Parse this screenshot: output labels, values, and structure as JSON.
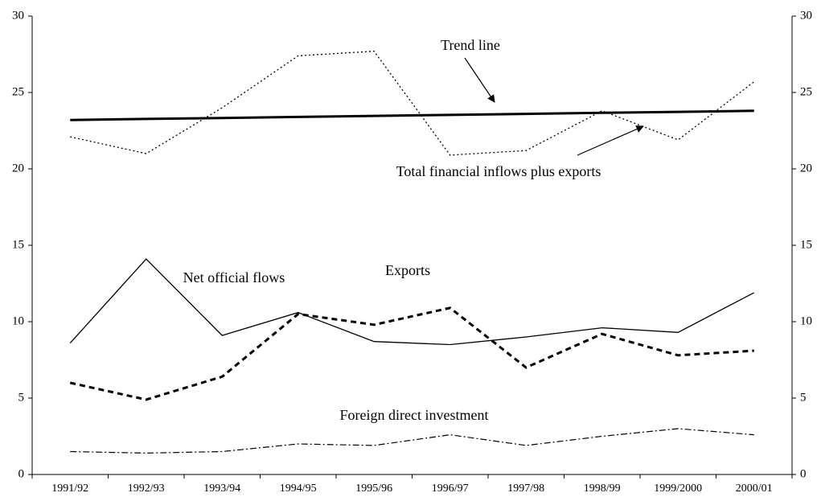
{
  "chart_data": {
    "type": "line",
    "categories": [
      "1991/92",
      "1992/93",
      "1993/94",
      "1994/95",
      "1995/96",
      "1996/97",
      "1997/98",
      "1998/99",
      "1999/2000",
      "2000/01"
    ],
    "series": [
      {
        "name": "Total financial inflows plus exports",
        "color": "#000000",
        "line_style": "dotted",
        "values": [
          22.1,
          21.0,
          24.0,
          27.4,
          27.7,
          20.9,
          21.2,
          23.8,
          21.9,
          25.7
        ]
      },
      {
        "name": "Trend line",
        "color": "#000000",
        "line_style": "bold",
        "values": [
          23.2,
          23.27,
          23.33,
          23.4,
          23.47,
          23.53,
          23.6,
          23.67,
          23.73,
          23.8
        ]
      },
      {
        "name": "Net official flows",
        "color": "#000000",
        "line_style": "solid",
        "values": [
          8.6,
          14.1,
          9.1,
          10.6,
          8.7,
          8.5,
          9.0,
          9.6,
          9.3,
          11.9
        ]
      },
      {
        "name": "Exports",
        "color": "#000000",
        "line_style": "dashed",
        "values": [
          6.0,
          4.9,
          6.4,
          10.5,
          9.8,
          10.9,
          7.0,
          9.2,
          7.8,
          8.1
        ]
      },
      {
        "name": "Foreign direct investment",
        "color": "#000000",
        "line_style": "dashdot",
        "values": [
          1.5,
          1.4,
          1.5,
          2.0,
          1.9,
          2.6,
          1.9,
          2.5,
          3.0,
          2.6
        ]
      }
    ],
    "ylim": [
      0,
      30
    ],
    "yticks": [
      0,
      5,
      10,
      15,
      20,
      25,
      30
    ],
    "y2lim": [
      0,
      30
    ],
    "y2ticks": [
      0,
      5,
      10,
      15,
      20,
      25,
      30
    ],
    "grid": false
  }
}
